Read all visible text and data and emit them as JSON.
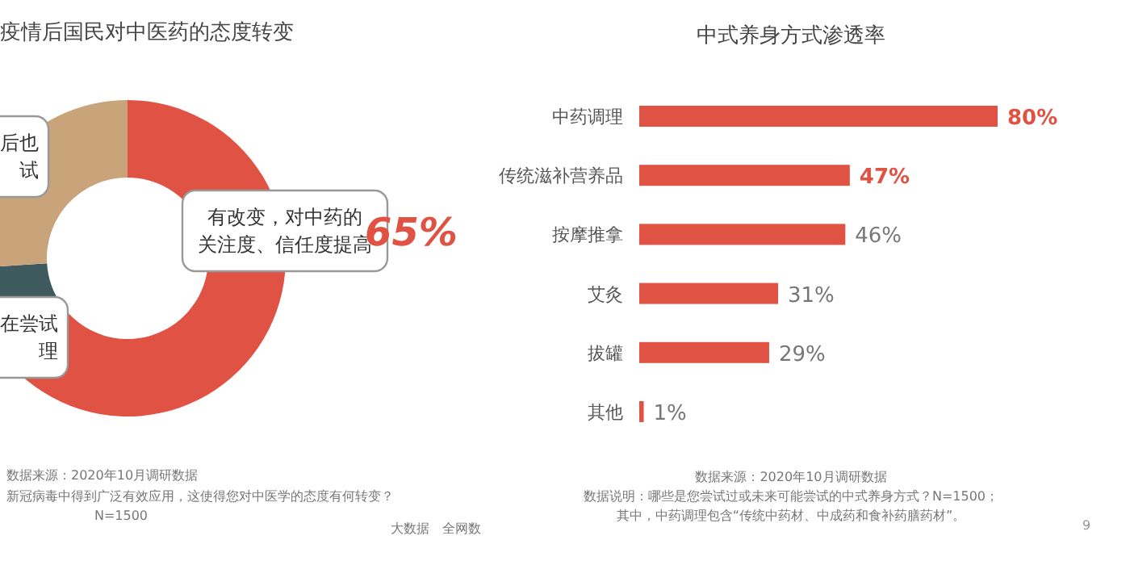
{
  "chart_data": [
    {
      "type": "donut",
      "title": "疫情后国民对中医药的态度转变",
      "categories": [
        "有改变，对中药的关注度、信任度提高",
        "在尝试理",
        "后也试"
      ],
      "values": [
        65,
        9,
        26
      ],
      "value_labels": [
        "65%",
        null,
        null
      ],
      "colors": [
        "#e05244",
        "#3e5a5e",
        "#c9a47a"
      ],
      "annotations": [
        "数据来源：2020年10月调研数据",
        "新冠病毒中得到广泛有效应用，这使得您对中医学的态度有何转变？",
        "N=1500",
        "大数据　全网数"
      ]
    },
    {
      "type": "bar",
      "orientation": "horizontal",
      "title": "中式养身方式渗透率",
      "categories": [
        "中药调理",
        "传统滋补营养品",
        "按摩推拿",
        "艾灸",
        "拔罐",
        "其他"
      ],
      "values": [
        80,
        47,
        46,
        31,
        29,
        1
      ],
      "value_labels": [
        "80%",
        "47%",
        "46%",
        "31%",
        "29%",
        "1%"
      ],
      "color": "#e05244",
      "annotations": [
        "数据来源：2020年10月调研数据",
        "数据说明：哪些是您尝试过或未来可能尝试的中式养身方式？N=1500；",
        "其中，中药调理包含“传统中药材、中成药和食补药膳药材”。",
        "9"
      ]
    }
  ]
}
